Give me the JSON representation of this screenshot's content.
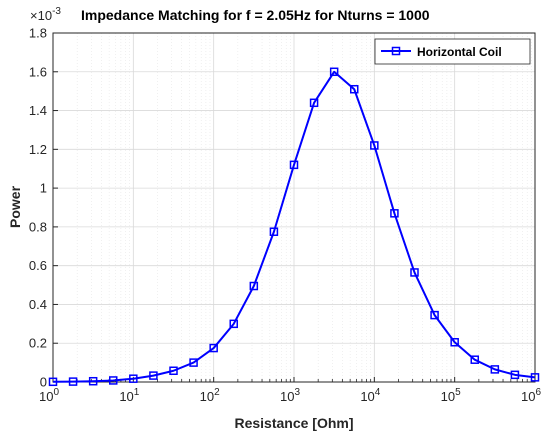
{
  "chart_data": {
    "type": "line",
    "title": "Impedance Matching for f = 2.05Hz for Nturns = 1000",
    "xlabel": "Resistance [Ohm]",
    "ylabel": "Power",
    "y_exponent_label": "×10",
    "y_exponent_power": "-3",
    "x_scale": "log",
    "xlim": [
      1,
      1000000
    ],
    "ylim": [
      0,
      1.8
    ],
    "x_ticks": [
      {
        "base": "10",
        "exp": "0"
      },
      {
        "base": "10",
        "exp": "1"
      },
      {
        "base": "10",
        "exp": "2"
      },
      {
        "base": "10",
        "exp": "3"
      },
      {
        "base": "10",
        "exp": "4"
      },
      {
        "base": "10",
        "exp": "5"
      },
      {
        "base": "10",
        "exp": "6"
      }
    ],
    "y_ticks": [
      "0",
      "0.2",
      "0.4",
      "0.6",
      "0.8",
      "1",
      "1.2",
      "1.4",
      "1.6",
      "1.8"
    ],
    "grid": true,
    "legend_position": "top-right",
    "series": [
      {
        "name": "Horizontal Coil",
        "color": "#0000ff",
        "marker": "square",
        "x": [
          1,
          1.778,
          3.162,
          5.623,
          10,
          17.78,
          31.62,
          56.23,
          100,
          177.8,
          316.2,
          562.3,
          1000,
          1778,
          3162,
          5623,
          10000,
          17783,
          31623,
          56234,
          100000,
          177828,
          316228,
          562341,
          1000000
        ],
        "values": [
          0.001,
          0.002,
          0.004,
          0.008,
          0.017,
          0.033,
          0.058,
          0.1,
          0.175,
          0.3,
          0.495,
          0.775,
          1.12,
          1.44,
          1.6,
          1.51,
          1.22,
          0.87,
          0.565,
          0.345,
          0.205,
          0.115,
          0.065,
          0.037,
          0.024
        ]
      }
    ]
  }
}
